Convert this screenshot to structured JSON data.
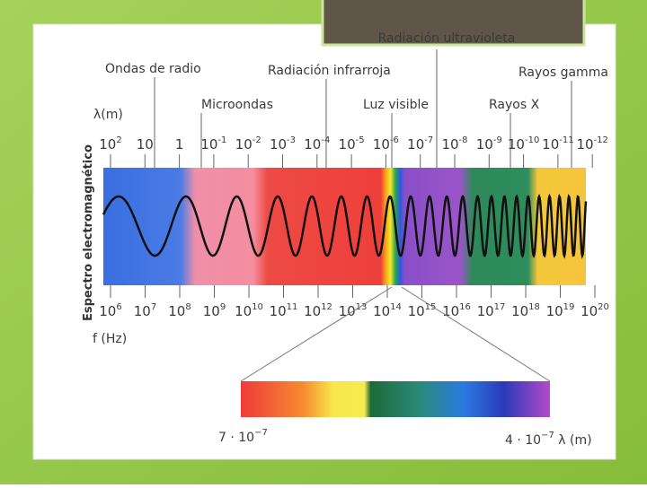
{
  "header": {
    "title": "Radiación ultravioleta"
  },
  "labels": {
    "radio": "Ondas de radio",
    "infrared": "Radiación infrarroja",
    "gamma": "Rayos gamma",
    "microwave": "Microondas",
    "visible": "Luz visible",
    "xray": "Rayos X"
  },
  "axes": {
    "wavelength_label": "λ(m)",
    "frequency_label": "f (Hz)",
    "vertical_title": "Espectro electromagnético"
  },
  "wavelength_ticks": [
    {
      "base": "10",
      "sup": "2"
    },
    {
      "base": "10"
    },
    {
      "base": "1"
    },
    {
      "base": "10",
      "sup": "-1"
    },
    {
      "base": "10",
      "sup": "-2"
    },
    {
      "base": "10",
      "sup": "-3"
    },
    {
      "base": "10",
      "sup": "-4"
    },
    {
      "base": "10",
      "sup": "-5"
    },
    {
      "base": "10",
      "sup": "-6"
    },
    {
      "base": "10",
      "sup": "-7"
    },
    {
      "base": "10",
      "sup": "-8"
    },
    {
      "base": "10",
      "sup": "-9"
    },
    {
      "base": "10",
      "sup": "-10"
    },
    {
      "base": "10",
      "sup": "-11"
    },
    {
      "base": "10",
      "sup": "-12"
    }
  ],
  "frequency_ticks": [
    {
      "base": "10",
      "sup": "6"
    },
    {
      "base": "10",
      "sup": "7"
    },
    {
      "base": "10",
      "sup": "8"
    },
    {
      "base": "10",
      "sup": "9"
    },
    {
      "base": "10",
      "sup": "10"
    },
    {
      "base": "10",
      "sup": "11"
    },
    {
      "base": "10",
      "sup": "12"
    },
    {
      "base": "10",
      "sup": "13"
    },
    {
      "base": "10",
      "sup": "14"
    },
    {
      "base": "10",
      "sup": "15"
    },
    {
      "base": "10",
      "sup": "16"
    },
    {
      "base": "10",
      "sup": "17"
    },
    {
      "base": "10",
      "sup": "18"
    },
    {
      "base": "10",
      "sup": "19"
    },
    {
      "base": "10",
      "sup": "20"
    }
  ],
  "visible_range": {
    "left": {
      "base": "7 · 10",
      "sup": "−7"
    },
    "right": {
      "base": "4 · 10",
      "sup": "−7",
      "unit": " λ (m)"
    }
  }
}
